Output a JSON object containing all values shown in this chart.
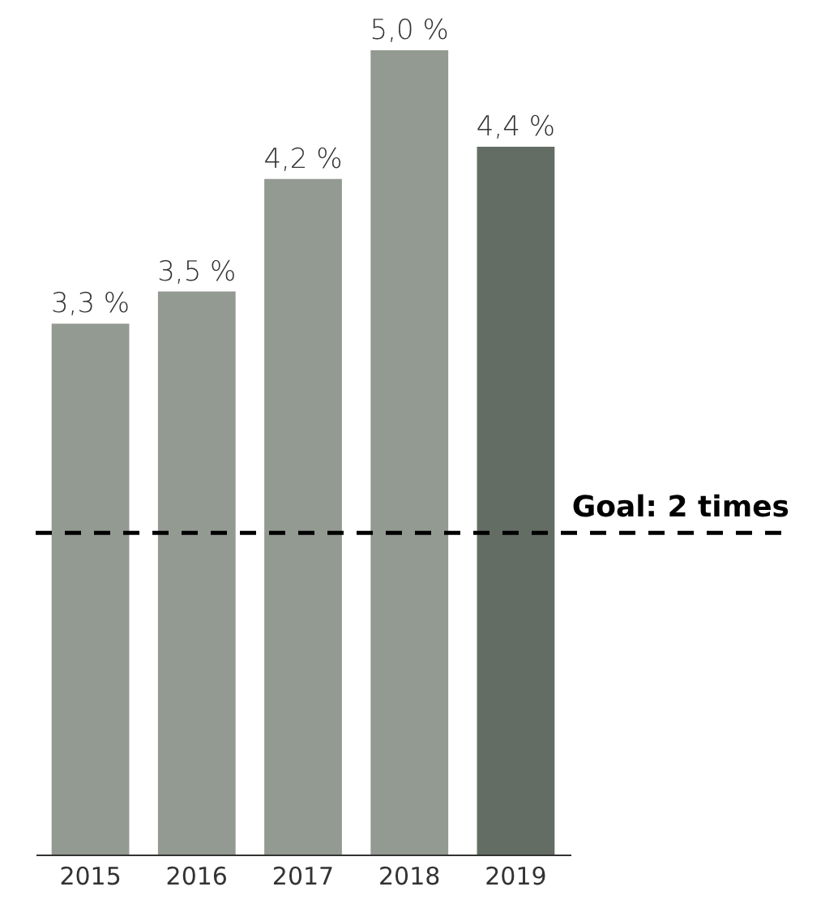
{
  "chart_data": {
    "type": "bar",
    "categories": [
      "2015",
      "2016",
      "2017",
      "2018",
      "2019"
    ],
    "values": [
      3.3,
      3.5,
      4.2,
      5.0,
      4.4
    ],
    "colors": [
      "#939a91",
      "#939a91",
      "#939a91",
      "#939a91",
      "#646d63"
    ],
    "value_labels": [
      "3,3 %",
      "3,5 %",
      "4,2 %",
      "5,0 %",
      "4,4 %"
    ],
    "ref_lines": [
      {
        "axis": "y",
        "value": 2.0,
        "label": "Goal: 2 times",
        "color": "#000000",
        "line_style": "dashed"
      }
    ],
    "grid": false,
    "tick_labels": "x"
  }
}
